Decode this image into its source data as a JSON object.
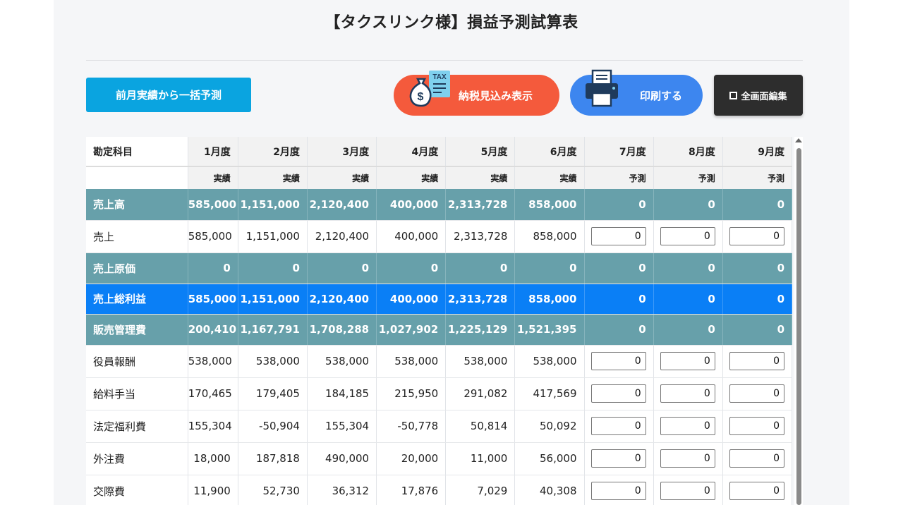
{
  "title": "【タクスリンク様】損益予測試算表",
  "toolbar": {
    "bulk_predict": "前月実績から一括予測",
    "tax_estimate": "納税見込み表示",
    "tax_icon_text": "TAX",
    "print": "印刷する",
    "fullscreen_edit": "全画面編集"
  },
  "table": {
    "header_account": "勘定科目",
    "months": [
      "1月度",
      "2月度",
      "3月度",
      "4月度",
      "5月度",
      "6月度",
      "7月度",
      "8月度",
      "9月度"
    ],
    "kinds": [
      "実績",
      "実績",
      "実績",
      "実績",
      "実績",
      "実績",
      "予測",
      "予測",
      "予測"
    ],
    "rows": [
      {
        "label": "売上高",
        "style": "teal",
        "values": [
          "585,000",
          "1,151,000",
          "2,120,400",
          "400,000",
          "2,313,728",
          "858,000",
          "0",
          "0",
          "0"
        ]
      },
      {
        "label": "売上",
        "style": "plain",
        "values": [
          "585,000",
          "1,151,000",
          "2,120,400",
          "400,000",
          "2,313,728",
          "858,000",
          "0",
          "0",
          "0"
        ]
      },
      {
        "label": "売上原価",
        "style": "teal",
        "values": [
          "0",
          "0",
          "0",
          "0",
          "0",
          "0",
          "0",
          "0",
          "0"
        ]
      },
      {
        "label": "売上総利益",
        "style": "blue",
        "values": [
          "585,000",
          "1,151,000",
          "2,120,400",
          "400,000",
          "2,313,728",
          "858,000",
          "0",
          "0",
          "0"
        ]
      },
      {
        "label": "販売管理費",
        "style": "teal",
        "values": [
          "200,410",
          "1,167,791",
          "1,708,288",
          "1,027,902",
          "1,225,129",
          "1,521,395",
          "0",
          "0",
          "0"
        ]
      },
      {
        "label": "役員報酬",
        "style": "plain",
        "values": [
          "538,000",
          "538,000",
          "538,000",
          "538,000",
          "538,000",
          "538,000",
          "0",
          "0",
          "0"
        ]
      },
      {
        "label": "給料手当",
        "style": "plain",
        "values": [
          "170,465",
          "179,405",
          "184,185",
          "215,950",
          "291,082",
          "417,569",
          "0",
          "0",
          "0"
        ]
      },
      {
        "label": "法定福利費",
        "style": "plain",
        "values": [
          "155,304",
          "-50,904",
          "155,304",
          "-50,778",
          "50,814",
          "50,092",
          "0",
          "0",
          "0"
        ]
      },
      {
        "label": "外注費",
        "style": "plain",
        "values": [
          "18,000",
          "187,818",
          "490,000",
          "20,000",
          "11,000",
          "56,000",
          "0",
          "0",
          "0"
        ]
      },
      {
        "label": "交際費",
        "style": "plain",
        "values": [
          "11,900",
          "52,730",
          "36,312",
          "17,876",
          "7,029",
          "40,308",
          "0",
          "0",
          "0"
        ]
      }
    ]
  },
  "colors": {
    "teal_row": "#67a0aa",
    "blue_row": "#0a7ff6",
    "bulk_button": "#0aa4e0",
    "tax_button": "#f45a3c",
    "print_button": "#3d86ef",
    "fullscreen_button": "#2d2d2d"
  },
  "icons": {
    "tax": "money-bag-tax-icon",
    "print": "printer-icon",
    "fullscreen": "fullscreen-icon"
  }
}
